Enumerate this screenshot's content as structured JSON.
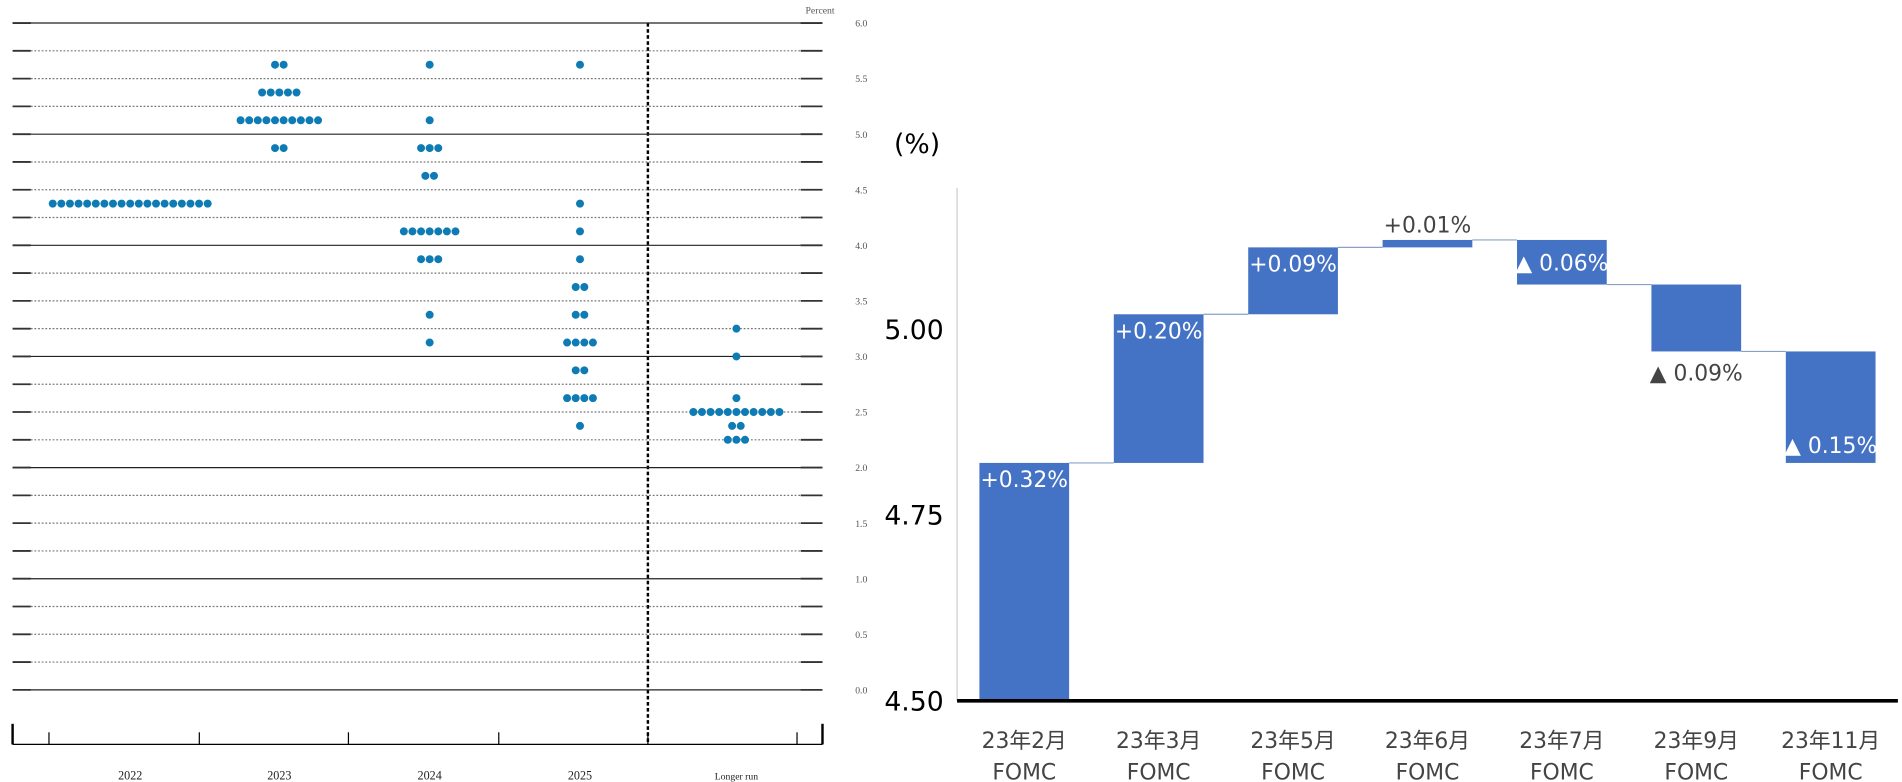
{
  "chart_data": [
    {
      "type": "dot",
      "y_label": "Percent",
      "color": "#0e7bb5",
      "categories": [
        "2022",
        "2023",
        "2024",
        "2025",
        "Longer run"
      ],
      "values": [
        [
          4.375,
          4.375,
          4.375,
          4.375,
          4.375,
          4.375,
          4.375,
          4.375,
          4.375,
          4.375,
          4.375,
          4.375,
          4.375,
          4.375,
          4.375,
          4.375,
          4.375,
          4.375,
          4.375
        ],
        [
          5.625,
          5.625,
          5.375,
          5.375,
          5.375,
          5.375,
          5.375,
          5.125,
          5.125,
          5.125,
          5.125,
          5.125,
          5.125,
          5.125,
          5.125,
          5.125,
          5.125,
          4.875,
          4.875
        ],
        [
          5.625,
          5.125,
          4.875,
          4.875,
          4.875,
          4.625,
          4.625,
          4.125,
          4.125,
          4.125,
          4.125,
          4.125,
          4.125,
          4.125,
          3.875,
          3.875,
          3.875,
          3.375,
          3.125
        ],
        [
          5.625,
          4.375,
          4.125,
          3.875,
          3.625,
          3.625,
          3.375,
          3.375,
          3.125,
          3.125,
          3.125,
          3.125,
          2.875,
          2.875,
          2.625,
          2.625,
          2.625,
          2.625,
          2.375
        ],
        [
          3.25,
          3.0,
          2.625,
          2.5,
          2.5,
          2.5,
          2.5,
          2.5,
          2.5,
          2.5,
          2.5,
          2.5,
          2.5,
          2.5,
          2.375,
          2.375,
          2.25,
          2.25,
          2.25
        ]
      ],
      "ylim": [
        0,
        6
      ],
      "yticks": [
        {
          "value": 0,
          "label": "0.0"
        },
        0.5,
        {
          "value": 1,
          "label": "1.0"
        },
        1.5,
        {
          "value": 2,
          "label": "2.0"
        },
        2.5,
        {
          "value": 3,
          "label": "3.0"
        },
        3.5,
        {
          "value": 4,
          "label": "4.0"
        },
        4.5,
        {
          "value": 5,
          "label": "5.0"
        },
        5.5,
        {
          "value": 6,
          "label": "6.0"
        }
      ],
      "grid": true
    },
    {
      "type": "waterfall",
      "y_label": "(%)",
      "color": "#4472c4",
      "categories": [
        [
          "23年2月",
          "FOMC"
        ],
        [
          "23年3月",
          "FOMC"
        ],
        [
          "23年5月",
          "FOMC"
        ],
        [
          "23年6月",
          "FOMC"
        ],
        [
          "23年7月",
          "FOMC"
        ],
        [
          "23年9月",
          "FOMC"
        ],
        [
          "23年11月",
          "FOMC"
        ]
      ],
      "values": [
        0.32,
        0.2,
        0.09,
        0.01,
        -0.06,
        -0.09,
        -0.15
      ],
      "value_labels": [
        "+0.32%",
        "+0.20%",
        "+0.09%",
        "+0.01%",
        "▲ 0.06%",
        "▲ 0.09%",
        "▲ 0.15%"
      ],
      "ylim": [
        4.5,
        5.19
      ],
      "yticks": [
        {
          "value": 4.5,
          "label": "4.50"
        },
        {
          "value": 4.75,
          "label": "4.75"
        },
        {
          "value": 5.0,
          "label": "5.00"
        }
      ]
    }
  ]
}
